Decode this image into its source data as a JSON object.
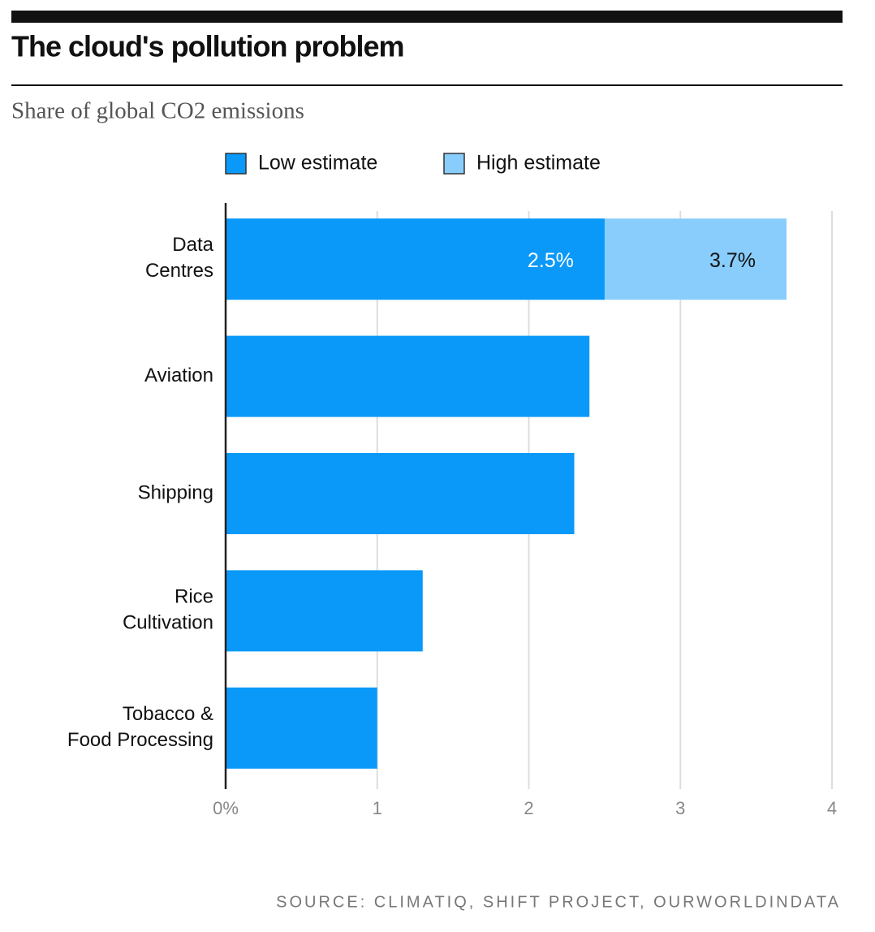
{
  "chart_data": {
    "type": "bar",
    "orientation": "horizontal",
    "title": "The cloud's pollution problem",
    "subtitle": "Share of global CO2 emissions",
    "source": "SOURCE: CLIMATIQ, SHIFT PROJECT, OURWORLDINDATA",
    "categories": [
      "Data\nCentres",
      "Aviation",
      "Shipping",
      "Rice\nCultivation",
      "Tobacco &\nFood Processing"
    ],
    "series": [
      {
        "name": "High estimate",
        "color": "#88cdfb",
        "values": [
          3.7,
          null,
          null,
          null,
          null
        ],
        "value_labels": [
          "3.7%",
          null,
          null,
          null,
          null
        ],
        "label_color": "#111111"
      },
      {
        "name": "Low estimate",
        "color": "#0a99f8",
        "values": [
          2.5,
          2.4,
          2.3,
          1.3,
          1.0
        ],
        "value_labels": [
          "2.5%",
          null,
          null,
          null,
          null
        ],
        "label_color": "#ffffff"
      }
    ],
    "legend_order": [
      1,
      0
    ],
    "xlim": [
      0,
      4
    ],
    "xticks": [
      {
        "value": 0,
        "label": "0%"
      },
      1,
      2,
      3,
      4
    ],
    "grid": true
  }
}
